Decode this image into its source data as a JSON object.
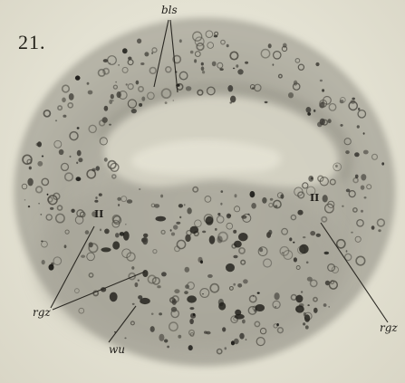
{
  "figure": {
    "number": "21.",
    "labels": {
      "bls": "bls",
      "rgz_left": "rgz",
      "rgz_right": "rgz",
      "wu": "wu",
      "roman": "II"
    }
  },
  "colors": {
    "paper": "#e4e1d3",
    "section_outer": "#a9a89d",
    "section_inner": "#b8b6a8",
    "lumen": "#dcdacb",
    "ink": "#1e1c18"
  }
}
